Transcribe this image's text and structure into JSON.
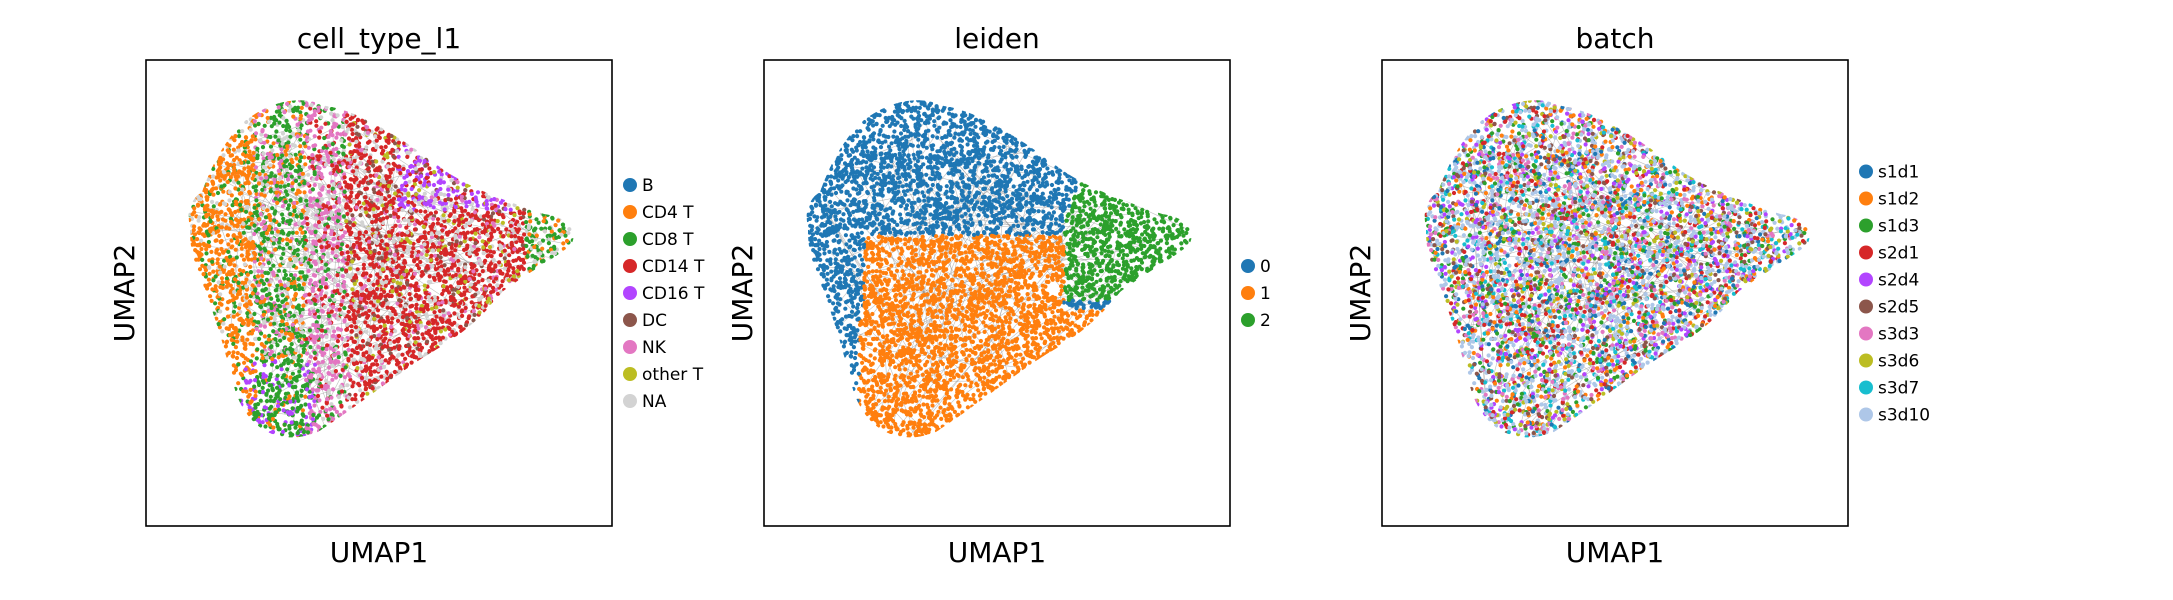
{
  "chart_data": [
    {
      "type": "scatter",
      "title": "cell_type_l1",
      "xlabel": "UMAP1",
      "ylabel": "UMAP2",
      "legend_position": "right",
      "grid": false,
      "categories": [
        {
          "label": "B",
          "color": "#1f77b4"
        },
        {
          "label": "CD4 T",
          "color": "#ff7f0e"
        },
        {
          "label": "CD8 T",
          "color": "#2ca02c"
        },
        {
          "label": "CD14 T",
          "color": "#d62728"
        },
        {
          "label": "CD16 T",
          "color": "#b245ff"
        },
        {
          "label": "DC",
          "color": "#8c564b"
        },
        {
          "label": "NK",
          "color": "#e377c2"
        },
        {
          "label": "other T",
          "color": "#bcbd22"
        },
        {
          "label": "NA",
          "color": "#d3d3d3"
        }
      ]
    },
    {
      "type": "scatter",
      "title": "leiden",
      "xlabel": "UMAP1",
      "ylabel": "UMAP2",
      "legend_position": "right",
      "grid": false,
      "categories": [
        {
          "label": "0",
          "color": "#1f77b4"
        },
        {
          "label": "1",
          "color": "#ff7f0e"
        },
        {
          "label": "2",
          "color": "#2ca02c"
        }
      ]
    },
    {
      "type": "scatter",
      "title": "batch",
      "xlabel": "UMAP1",
      "ylabel": "UMAP2",
      "legend_position": "right",
      "grid": false,
      "categories": [
        {
          "label": "s1d1",
          "color": "#1f77b4"
        },
        {
          "label": "s1d2",
          "color": "#ff7f0e"
        },
        {
          "label": "s1d3",
          "color": "#2ca02c"
        },
        {
          "label": "s2d1",
          "color": "#d62728"
        },
        {
          "label": "s2d4",
          "color": "#b245ff"
        },
        {
          "label": "s2d5",
          "color": "#8c564b"
        },
        {
          "label": "s3d3",
          "color": "#e377c2"
        },
        {
          "label": "s3d6",
          "color": "#bcbd22"
        },
        {
          "label": "s3d7",
          "color": "#17becf"
        },
        {
          "label": "s3d10",
          "color": "#aec7e8"
        }
      ]
    }
  ]
}
